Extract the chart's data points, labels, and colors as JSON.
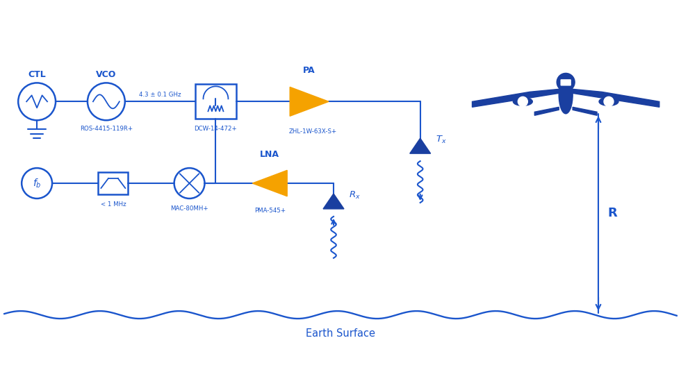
{
  "blue": "#1a55cc",
  "blue2": "#3366dd",
  "orange": "#f5a200",
  "dark_blue": "#1a3fa0",
  "bg": "#ffffff",
  "labels": {
    "VCO": "VCO",
    "CTL": "CTL",
    "PA": "PA",
    "LNA": "LNA",
    "Rx": "$R_x$",
    "Tx": "$T_x$",
    "R": "R",
    "earth": "Earth Surface",
    "vco_model": "ROS-4415-119R+",
    "freq": "4.3 ± 0.1 GHz",
    "pa_model": "ZHL-1W-63X-S+",
    "coupler_model": "DCW-14-472+",
    "filter_model": "< 1 MHz",
    "mixer_model": "MAC-80MH+",
    "lna_model": "PMA-545+"
  }
}
